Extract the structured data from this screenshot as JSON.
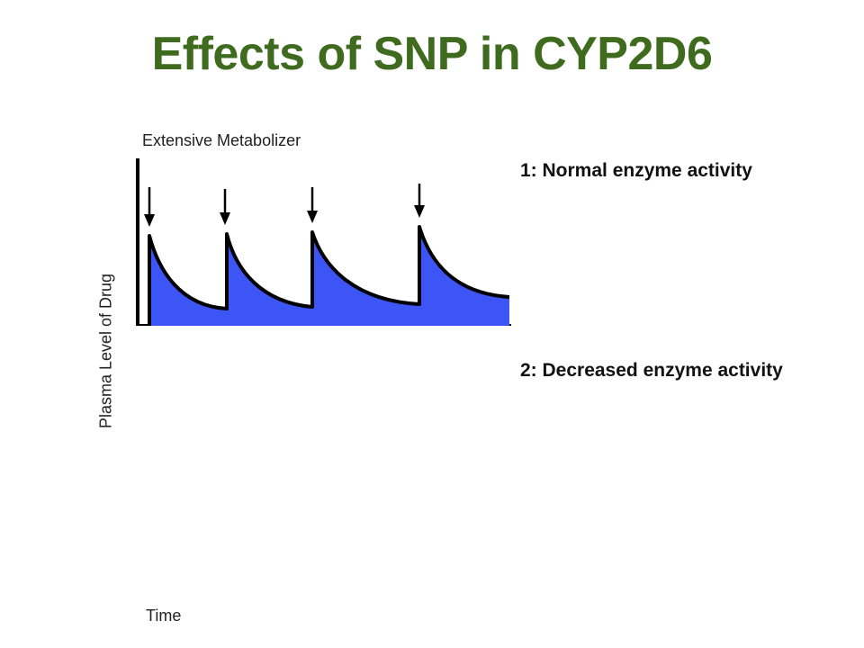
{
  "title": "Effects of SNP in CYP2D6",
  "colors": {
    "title": "#3e6b1e",
    "fill": "#3d55f5",
    "stroke": "#000000"
  },
  "graph": {
    "label": "Extensive Metabolizer",
    "ylabel": "Plasma Level of Drug",
    "xlabel": "Time",
    "dose_count": 4
  },
  "legend": [
    {
      "label": "1: Normal enzyme activity"
    },
    {
      "label": "2: Decreased enzyme activity"
    }
  ]
}
